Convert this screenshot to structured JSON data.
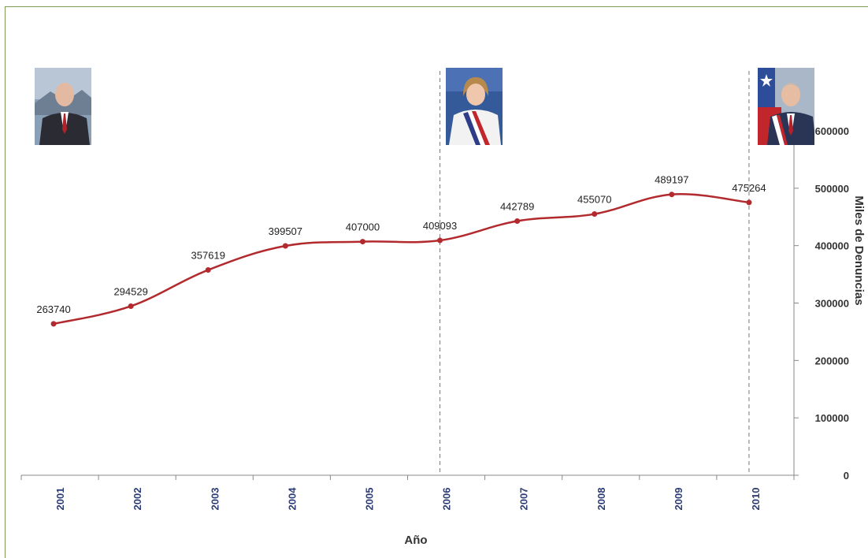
{
  "chart_data": {
    "type": "line",
    "xlabel": "Año",
    "ylabel": "Miles de Denuncias",
    "categories": [
      "2001",
      "2002",
      "2003",
      "2004",
      "2005",
      "2006",
      "2007",
      "2008",
      "2009",
      "2010"
    ],
    "series": [
      {
        "values": [
          263740,
          294529,
          357619,
          399507,
          407000,
          409093,
          442789,
          455070,
          489197,
          475264
        ]
      }
    ],
    "data_labels": [
      "263740",
      "294529",
      "357619",
      "399507",
      "407000",
      "409093",
      "442789",
      "455070",
      "489197",
      "475264"
    ],
    "ylim": [
      0,
      600000
    ],
    "yticks": [
      0,
      100000,
      200000,
      300000,
      400000,
      500000,
      600000
    ],
    "ytick_labels": [
      "0",
      "100000",
      "200000",
      "300000",
      "400000",
      "500000",
      "600000"
    ],
    "y_axis_side": "right",
    "grid": false,
    "legend": "none",
    "markers": "circle",
    "smooth": true,
    "vertical_markers": [
      {
        "category": "2006",
        "style": "dashed"
      },
      {
        "category": "2010",
        "style": "dashed"
      }
    ],
    "colors": {
      "line": "#b22a2e",
      "axis": "#888888",
      "tick_label_x": "#2d3d75",
      "frame": "#7f9a55"
    }
  },
  "portraits": [
    {
      "name": "portrait-2001",
      "category": "2001"
    },
    {
      "name": "portrait-2006",
      "category": "2006"
    },
    {
      "name": "portrait-2010",
      "category": "2010"
    }
  ]
}
